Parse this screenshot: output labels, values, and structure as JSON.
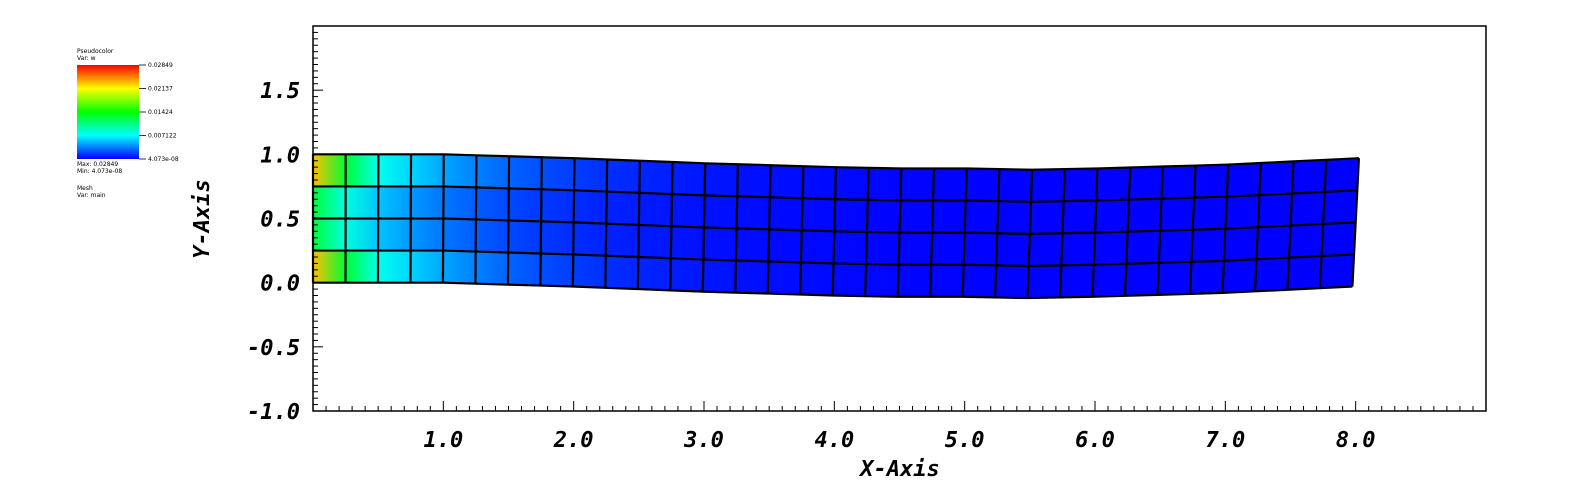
{
  "legend": {
    "plot_type": "Pseudocolor",
    "var_label": "Var: w",
    "ticks": [
      "0.02849",
      "0.02137",
      "0.01424",
      "0.007122",
      "4.073e-08"
    ],
    "max_label": "Max: 0.02849",
    "min_label": "Min: 4.073e-08",
    "mesh_label": "Mesh",
    "mesh_var_label": "Var: main",
    "colors": [
      "#ff0000",
      "#ffff00",
      "#00ff00",
      "#00ffff",
      "#0000ff"
    ]
  },
  "chart_data": {
    "type": "heatmap",
    "xlabel": "X-Axis",
    "ylabel": "Y-Axis",
    "xlim": [
      0.0,
      9.0
    ],
    "ylim": [
      -1.0,
      2.0
    ],
    "x_tick_labels": [
      "1.0",
      "2.0",
      "3.0",
      "4.0",
      "5.0",
      "6.0",
      "7.0",
      "8.0"
    ],
    "y_tick_labels": [
      "1.5",
      "1.0",
      "0.5",
      "0.0",
      "-0.5",
      "-1.0"
    ],
    "mesh": {
      "columns": 32,
      "rows": 4,
      "beam_length": 8.0,
      "beam_height": 1.0
    },
    "field": {
      "name": "w",
      "min": 4.073e-08,
      "max": 0.02849
    },
    "deformation": {
      "x": [
        0.0,
        1.0,
        2.0,
        3.0,
        4.0,
        4.5,
        5.0,
        5.5,
        6.0,
        7.0,
        8.0
      ],
      "y_offset": [
        0.0,
        0.0,
        -0.03,
        -0.07,
        -0.1,
        -0.11,
        -0.11,
        -0.12,
        -0.11,
        -0.08,
        -0.03
      ]
    }
  }
}
